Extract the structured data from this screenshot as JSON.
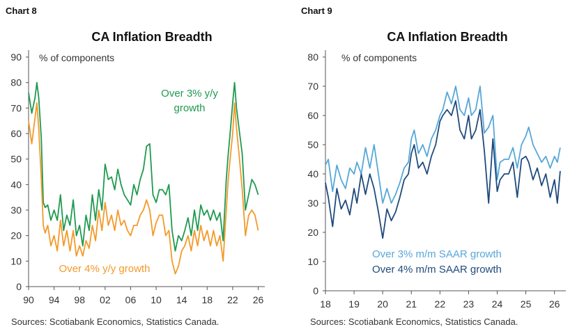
{
  "chart_data": [
    {
      "type": "line",
      "chart_label": "Chart 8",
      "title": "CA Inflation Breadth",
      "ylabel": "% of components",
      "ylim": [
        0,
        90
      ],
      "yticks": [
        0,
        10,
        20,
        30,
        40,
        50,
        60,
        70,
        80,
        90
      ],
      "xlim": [
        1990,
        2026.6
      ],
      "xticks": [
        {
          "v": 1990,
          "label": "90"
        },
        {
          "v": 1994,
          "label": "94"
        },
        {
          "v": 1998,
          "label": "98"
        },
        {
          "v": 2002,
          "label": "02"
        },
        {
          "v": 2006,
          "label": "06"
        },
        {
          "v": 2010,
          "label": "10"
        },
        {
          "v": 2014,
          "label": "14"
        },
        {
          "v": 2018,
          "label": "18"
        },
        {
          "v": 2022,
          "label": "22"
        },
        {
          "v": 2026,
          "label": "26"
        }
      ],
      "series": [
        {
          "name": "Over 3% y/y growth",
          "label_lines": [
            "Over 3% y/y",
            "growth"
          ],
          "color": "#1f9a4f",
          "x": [
            1990,
            1990.5,
            1991,
            1991.3,
            1991.6,
            1992,
            1992.3,
            1992.6,
            1993,
            1993.5,
            1994,
            1994.5,
            1995,
            1995.5,
            1996,
            1996.5,
            1997,
            1997.5,
            1998,
            1998.5,
            1999,
            1999.5,
            2000,
            2000.5,
            2001,
            2001.5,
            2002,
            2002.5,
            2003,
            2003.5,
            2004,
            2004.5,
            2005,
            2005.5,
            2006,
            2006.5,
            2007,
            2007.5,
            2008,
            2008.5,
            2009,
            2009.5,
            2010,
            2010.5,
            2011,
            2011.5,
            2012,
            2012.5,
            2013,
            2013.5,
            2014,
            2014.5,
            2015,
            2015.5,
            2016,
            2016.5,
            2017,
            2017.5,
            2018,
            2018.5,
            2019,
            2019.5,
            2020,
            2020.5,
            2021,
            2021.3,
            2021.6,
            2022,
            2022.3,
            2022.6,
            2023,
            2023.5,
            2024,
            2024.5,
            2025,
            2025.5,
            2026
          ],
          "values": [
            76,
            68,
            74,
            80,
            74,
            58,
            33,
            31,
            32,
            26,
            30,
            26,
            36,
            22,
            28,
            24,
            34,
            20,
            24,
            16,
            28,
            22,
            36,
            26,
            38,
            30,
            48,
            42,
            43,
            38,
            46,
            40,
            36,
            34,
            32,
            40,
            36,
            42,
            46,
            55,
            56,
            36,
            33,
            38,
            38,
            36,
            40,
            22,
            14,
            20,
            18,
            22,
            27,
            20,
            30,
            22,
            32,
            28,
            30,
            26,
            30,
            26,
            29,
            18,
            42,
            52,
            60,
            72,
            80,
            70,
            62,
            52,
            30,
            36,
            42,
            40,
            36
          ]
        },
        {
          "name": "Over 4% y/y growth",
          "label_lines": [
            "Over 4% y/y growth"
          ],
          "color": "#f39a2a",
          "x": [
            1990,
            1990.5,
            1991,
            1991.3,
            1991.6,
            1992,
            1992.3,
            1992.6,
            1993,
            1993.5,
            1994,
            1994.5,
            1995,
            1995.5,
            1996,
            1996.5,
            1997,
            1997.5,
            1998,
            1998.5,
            1999,
            1999.5,
            2000,
            2000.5,
            2001,
            2001.5,
            2002,
            2002.5,
            2003,
            2003.5,
            2004,
            2004.5,
            2005,
            2005.5,
            2006,
            2006.5,
            2007,
            2007.5,
            2008,
            2008.5,
            2009,
            2009.5,
            2010,
            2010.5,
            2011,
            2011.5,
            2012,
            2012.5,
            2013,
            2013.5,
            2014,
            2014.5,
            2015,
            2015.5,
            2016,
            2016.5,
            2017,
            2017.5,
            2018,
            2018.5,
            2019,
            2019.5,
            2020,
            2020.5,
            2021,
            2021.3,
            2021.6,
            2022,
            2022.3,
            2022.6,
            2023,
            2023.5,
            2024,
            2024.5,
            2025,
            2025.5,
            2026
          ],
          "values": [
            65,
            56,
            66,
            72,
            62,
            42,
            24,
            21,
            24,
            16,
            20,
            14,
            26,
            16,
            22,
            14,
            22,
            12,
            16,
            12,
            18,
            15,
            24,
            18,
            30,
            22,
            33,
            24,
            28,
            22,
            30,
            24,
            26,
            22,
            20,
            24,
            24,
            28,
            30,
            34,
            30,
            20,
            25,
            28,
            28,
            20,
            22,
            10,
            5,
            8,
            14,
            16,
            20,
            14,
            22,
            16,
            24,
            18,
            22,
            16,
            22,
            16,
            20,
            10,
            30,
            42,
            50,
            60,
            72,
            62,
            52,
            38,
            20,
            28,
            30,
            28,
            22
          ]
        }
      ],
      "source": "Sources: Scotiabank Economics, Statistics Canada."
    },
    {
      "type": "line",
      "chart_label": "Chart 9",
      "title": "CA Inflation Breadth",
      "ylabel": "% of components",
      "ylim": [
        0,
        80
      ],
      "yticks": [
        0,
        10,
        20,
        30,
        40,
        50,
        60,
        70,
        80
      ],
      "xlim": [
        2018,
        2026.3
      ],
      "xticks": [
        {
          "v": 2018,
          "label": "18"
        },
        {
          "v": 2019,
          "label": "19"
        },
        {
          "v": 2020,
          "label": "20"
        },
        {
          "v": 2021,
          "label": "21"
        },
        {
          "v": 2022,
          "label": "22"
        },
        {
          "v": 2023,
          "label": "23"
        },
        {
          "v": 2024,
          "label": "24"
        },
        {
          "v": 2025,
          "label": "25"
        },
        {
          "v": 2026,
          "label": "26"
        }
      ],
      "series": [
        {
          "name": "Over 3% m/m SAAR growth",
          "color": "#56a7d8",
          "x": [
            2018,
            2018.1,
            2018.25,
            2018.4,
            2018.55,
            2018.7,
            2018.85,
            2019,
            2019.1,
            2019.25,
            2019.4,
            2019.55,
            2019.7,
            2019.85,
            2020,
            2020.15,
            2020.3,
            2020.45,
            2020.6,
            2020.75,
            2020.9,
            2021,
            2021.1,
            2021.25,
            2021.4,
            2021.55,
            2021.7,
            2021.85,
            2022,
            2022.1,
            2022.25,
            2022.4,
            2022.55,
            2022.7,
            2022.85,
            2023,
            2023.1,
            2023.25,
            2023.4,
            2023.55,
            2023.7,
            2023.85,
            2024,
            2024.1,
            2024.25,
            2024.4,
            2024.55,
            2024.7,
            2024.85,
            2025,
            2025.1,
            2025.25,
            2025.4,
            2025.55,
            2025.7,
            2025.85,
            2026,
            2026.1,
            2026.2
          ],
          "values": [
            43,
            45,
            34,
            43,
            38,
            35,
            42,
            40,
            44,
            40,
            49,
            42,
            50,
            40,
            30,
            35,
            30,
            33,
            37,
            42,
            44,
            52,
            55,
            47,
            50,
            46,
            52,
            55,
            60,
            62,
            68,
            64,
            70,
            62,
            60,
            66,
            60,
            62,
            70,
            54,
            56,
            60,
            38,
            44,
            45,
            45,
            49,
            42,
            50,
            53,
            56,
            50,
            47,
            44,
            46,
            42,
            46,
            44,
            49
          ]
        },
        {
          "name": "Over 4% m/m SAAR growth",
          "color": "#1f4a7c",
          "x": [
            2018,
            2018.1,
            2018.25,
            2018.4,
            2018.55,
            2018.7,
            2018.85,
            2019,
            2019.1,
            2019.25,
            2019.4,
            2019.55,
            2019.7,
            2019.85,
            2020,
            2020.15,
            2020.3,
            2020.45,
            2020.6,
            2020.75,
            2020.9,
            2021,
            2021.1,
            2021.25,
            2021.4,
            2021.55,
            2021.7,
            2021.85,
            2022,
            2022.1,
            2022.25,
            2022.4,
            2022.55,
            2022.7,
            2022.85,
            2023,
            2023.1,
            2023.25,
            2023.4,
            2023.55,
            2023.7,
            2023.85,
            2024,
            2024.1,
            2024.25,
            2024.4,
            2024.55,
            2024.7,
            2024.85,
            2025,
            2025.1,
            2025.25,
            2025.4,
            2025.55,
            2025.7,
            2025.85,
            2026,
            2026.1,
            2026.2
          ],
          "values": [
            37,
            32,
            22,
            35,
            28,
            31,
            26,
            35,
            30,
            40,
            33,
            40,
            35,
            27,
            18,
            28,
            24,
            27,
            32,
            38,
            40,
            47,
            50,
            42,
            44,
            40,
            46,
            50,
            58,
            60,
            62,
            60,
            65,
            55,
            52,
            60,
            52,
            55,
            62,
            48,
            30,
            52,
            34,
            38,
            40,
            40,
            44,
            32,
            45,
            46,
            44,
            38,
            42,
            36,
            40,
            32,
            38,
            30,
            41
          ]
        }
      ],
      "source": "Sources: Scotiabank Economics, Statistics Canada."
    }
  ]
}
